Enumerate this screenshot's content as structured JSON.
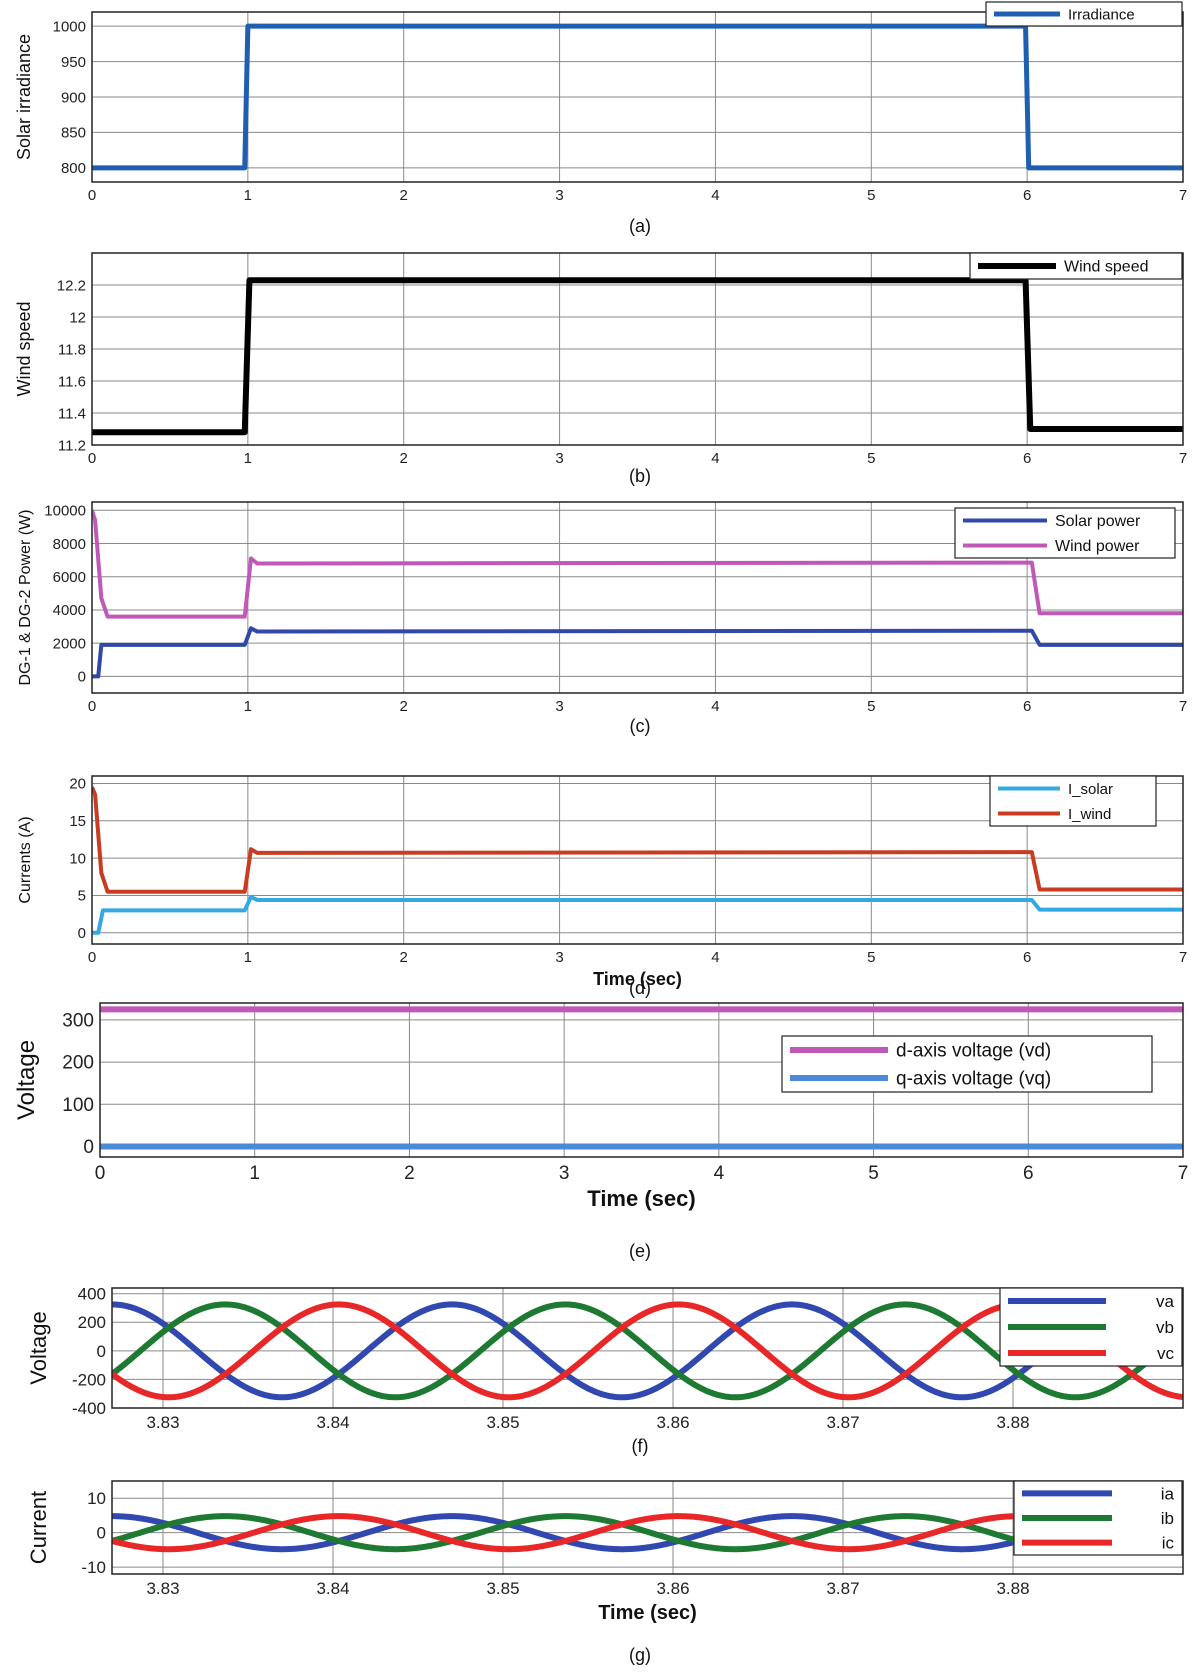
{
  "chart_data": [
    {
      "type": "line",
      "caption": "(a)",
      "xlabel": "",
      "ylabel": "Solar irradiance",
      "xlim": [
        0,
        7
      ],
      "ylim": [
        780,
        1020
      ],
      "xticks": [
        "0",
        "1",
        "2",
        "3",
        "4",
        "5",
        "6",
        "7"
      ],
      "yticks": [
        "800",
        "850",
        "900",
        "950",
        "1000"
      ],
      "grid": true,
      "legend_position": "top-right",
      "series": [
        {
          "name": "Irradiance",
          "color": "#1f5fb0",
          "x": [
            0,
            0.98,
            1.0,
            5.99,
            6.01,
            7
          ],
          "y": [
            800,
            800,
            1000,
            1000,
            800,
            800
          ]
        }
      ]
    },
    {
      "type": "line",
      "caption": "(b)",
      "xlabel": "",
      "ylabel": "Wind speed",
      "xlim": [
        0,
        7
      ],
      "ylim": [
        11.2,
        12.4
      ],
      "xticks": [
        "0",
        "1",
        "2",
        "3",
        "4",
        "5",
        "6",
        "7"
      ],
      "yticks": [
        "11.2",
        "11.4",
        "11.6",
        "11.8",
        "12",
        "12.2"
      ],
      "grid": true,
      "legend_position": "top-right",
      "series": [
        {
          "name": "Wind speed",
          "color": "#000000",
          "x": [
            0,
            0.98,
            1.01,
            5.99,
            6.02,
            7
          ],
          "y": [
            11.28,
            11.28,
            12.23,
            12.23,
            11.3,
            11.3
          ]
        }
      ]
    },
    {
      "type": "line",
      "caption": "(c)",
      "xlabel": "",
      "ylabel": "DG-1 & DG-2 Power (W)",
      "xlim": [
        0,
        7
      ],
      "ylim": [
        -1000,
        10500
      ],
      "xticks": [
        "0",
        "1",
        "2",
        "3",
        "4",
        "5",
        "6",
        "7"
      ],
      "yticks": [
        "0",
        "2000",
        "4000",
        "6000",
        "8000",
        "10000"
      ],
      "grid": true,
      "legend_position": "top-right",
      "series": [
        {
          "name": "Solar power",
          "color": "#3048a8",
          "x": [
            0,
            0.04,
            0.06,
            0.09,
            0.98,
            1.02,
            1.06,
            5.98,
            6.03,
            6.08,
            7
          ],
          "y": [
            0,
            0,
            1900,
            1900,
            1900,
            2900,
            2700,
            2750,
            2750,
            1900,
            1900
          ]
        },
        {
          "name": "Wind power",
          "color": "#c058b8",
          "x": [
            0,
            0.02,
            0.06,
            0.1,
            0.98,
            1.02,
            1.06,
            5.98,
            6.03,
            6.08,
            7
          ],
          "y": [
            10000,
            9400,
            4700,
            3600,
            3600,
            7100,
            6800,
            6850,
            6850,
            3800,
            3800
          ]
        }
      ]
    },
    {
      "type": "line",
      "caption": "(d)",
      "xlabel": "Time (sec)",
      "ylabel": "Currents (A)",
      "xlim": [
        0,
        7
      ],
      "ylim": [
        -1.5,
        21
      ],
      "xticks": [
        "0",
        "1",
        "2",
        "3",
        "4",
        "5",
        "6",
        "7"
      ],
      "yticks": [
        "0",
        "5",
        "10",
        "15",
        "20"
      ],
      "grid": true,
      "legend_position": "top-right",
      "series": [
        {
          "name": "I_solar",
          "color": "#34a8e0",
          "x": [
            0,
            0.04,
            0.07,
            0.1,
            0.98,
            1.02,
            1.06,
            5.98,
            6.03,
            6.08,
            7
          ],
          "y": [
            0,
            0,
            3,
            3,
            3,
            4.8,
            4.4,
            4.4,
            4.4,
            3.1,
            3.1
          ]
        },
        {
          "name": "I_wind",
          "color": "#c83c22",
          "x": [
            0,
            0.02,
            0.06,
            0.1,
            0.98,
            1.02,
            1.06,
            5.98,
            6.03,
            6.08,
            7
          ],
          "y": [
            19.5,
            18.5,
            8,
            5.5,
            5.5,
            11.2,
            10.7,
            10.8,
            10.8,
            5.8,
            5.8
          ]
        }
      ]
    },
    {
      "type": "line",
      "caption": "(e)",
      "xlabel": "Time (sec)",
      "ylabel": "Voltage",
      "xlim": [
        0,
        7
      ],
      "ylim": [
        -25,
        340
      ],
      "xticks": [
        "0",
        "1",
        "2",
        "3",
        "4",
        "5",
        "6",
        "7"
      ],
      "yticks": [
        "0",
        "100",
        "200",
        "300"
      ],
      "grid": true,
      "legend_position": "right",
      "series": [
        {
          "name": "d-axis voltage (vd)",
          "color": "#c058b8",
          "x": [
            0,
            7
          ],
          "y": [
            325,
            325
          ]
        },
        {
          "name": "q-axis voltage (vq)",
          "color": "#4a8ad8",
          "x": [
            0,
            7
          ],
          "y": [
            0,
            0
          ]
        }
      ]
    },
    {
      "type": "line",
      "caption": "(f)",
      "xlabel": "",
      "ylabel": "Voltage",
      "xlim": [
        3.827,
        3.89
      ],
      "ylim": [
        -400,
        440
      ],
      "xticks": [
        "3.83",
        "3.84",
        "3.85",
        "3.86",
        "3.87",
        "3.88"
      ],
      "yticks": [
        "-400",
        "-200",
        "0",
        "200",
        "400"
      ],
      "grid": true,
      "legend_position": "top-right",
      "waveform": {
        "kind": "sine",
        "amplitude": 325,
        "frequency_hz": 50,
        "peak_time": 3.847
      },
      "series": [
        {
          "name": "va",
          "color": "#3048b0",
          "phase_deg": 0
        },
        {
          "name": "vb",
          "color": "#1e7a32",
          "phase_deg": -120
        },
        {
          "name": "vc",
          "color": "#e82828",
          "phase_deg": 120
        }
      ]
    },
    {
      "type": "line",
      "caption": "(g)",
      "xlabel": "Time (sec)",
      "ylabel": "Current",
      "xlim": [
        3.827,
        3.89
      ],
      "ylim": [
        -12,
        15
      ],
      "xticks": [
        "3.83",
        "3.84",
        "3.85",
        "3.86",
        "3.87",
        "3.88"
      ],
      "yticks": [
        "-10",
        "0",
        "10"
      ],
      "grid": true,
      "legend_position": "top-right",
      "waveform": {
        "kind": "sine",
        "amplitude": 4.8,
        "frequency_hz": 50,
        "peak_time": 3.847
      },
      "series": [
        {
          "name": "ia",
          "color": "#3048b0",
          "phase_deg": 0
        },
        {
          "name": "ib",
          "color": "#1e7a32",
          "phase_deg": -120
        },
        {
          "name": "ic",
          "color": "#e82828",
          "phase_deg": 120
        }
      ]
    }
  ]
}
